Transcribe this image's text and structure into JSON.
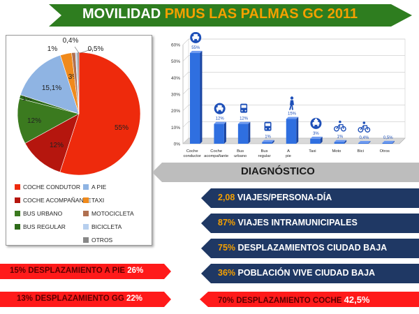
{
  "title": {
    "part1": "MOVILIDAD ",
    "part2": "PMUS LAS PALMAS GC 2011",
    "bg_color": "#2e7d1f",
    "part2_color": "#f5a000"
  },
  "chart_data": [
    {
      "type": "pie",
      "categories": [
        "COCHE CONDUTOR",
        "COCHE ACOMPAÑANTE",
        "BUS URBANO",
        "BUS REGULAR",
        "A PIE",
        "TAXI",
        "MOTOCICLETA",
        "BICICLETA",
        "OTROS"
      ],
      "values": [
        55,
        12,
        12,
        1,
        15.1,
        3,
        1,
        0.4,
        0.5
      ],
      "labels": [
        "55%",
        "12%",
        "12%",
        "1%",
        "15,1%",
        "3%",
        "1%",
        "0,4%",
        "0,5%"
      ],
      "colors": [
        "#ee2a0c",
        "#b5160e",
        "#3b7a1f",
        "#2e6b1a",
        "#8fb4e3",
        "#f08a1c",
        "#b07050",
        "#b7cfee",
        "#888888"
      ],
      "legend": "bottom"
    },
    {
      "type": "bar",
      "categories": [
        "Coche conductor",
        "Coche acompañante",
        "Bus urbano",
        "Bus regular",
        "A pie",
        "Taxi",
        "Moto",
        "Bici",
        "Otros"
      ],
      "values": [
        55,
        12,
        12,
        1,
        15,
        3,
        1,
        0.4,
        0.5
      ],
      "labels": [
        "55%",
        "12%",
        "12%",
        "1%",
        "15%",
        "3%",
        "1%",
        "0,4%",
        "0,5%"
      ],
      "yticks": [
        "0%",
        "10%",
        "20%",
        "30%",
        "40%",
        "50%",
        "60%"
      ],
      "ylim": [
        0,
        60
      ],
      "grid": true,
      "bar_color": "#2f6fe0",
      "icons": [
        "car-icon",
        "car-icon",
        "bus-icon",
        "bus-icon",
        "pedestrian-icon",
        "taxi-icon",
        "motorcycle-icon",
        "bicycle-icon",
        ""
      ]
    }
  ],
  "diagnostico": {
    "label": "DIAGNÓSTICO"
  },
  "stats": [
    {
      "value": "2,08",
      "text": " VIAJES/PERSONA-DÍA"
    },
    {
      "value": "87%",
      "text": " VIAJES INTRAMUNICIPALES"
    },
    {
      "value": "75%",
      "text": " DESPLAZAMIENTOS CIUDAD BAJA"
    },
    {
      "value": "36%",
      "text": " POBLACIÓN VIVE CIUDAD BAJA"
    }
  ],
  "red_banners": {
    "pie": {
      "text": "15% DESPLAZAMIENTO A PIE ",
      "value": "26%"
    },
    "gg": {
      "text": "13% DESPLAZAMIENTO GG ",
      "value": "22%"
    },
    "coche": {
      "text": "70% DESPLAZAMIENTO COCHE ",
      "value": "42,5%"
    }
  },
  "colors": {
    "navy": "#1f3864",
    "navy_value": "#f5a000",
    "red": "#ff1a1a",
    "gray": "#bfbfbf"
  }
}
